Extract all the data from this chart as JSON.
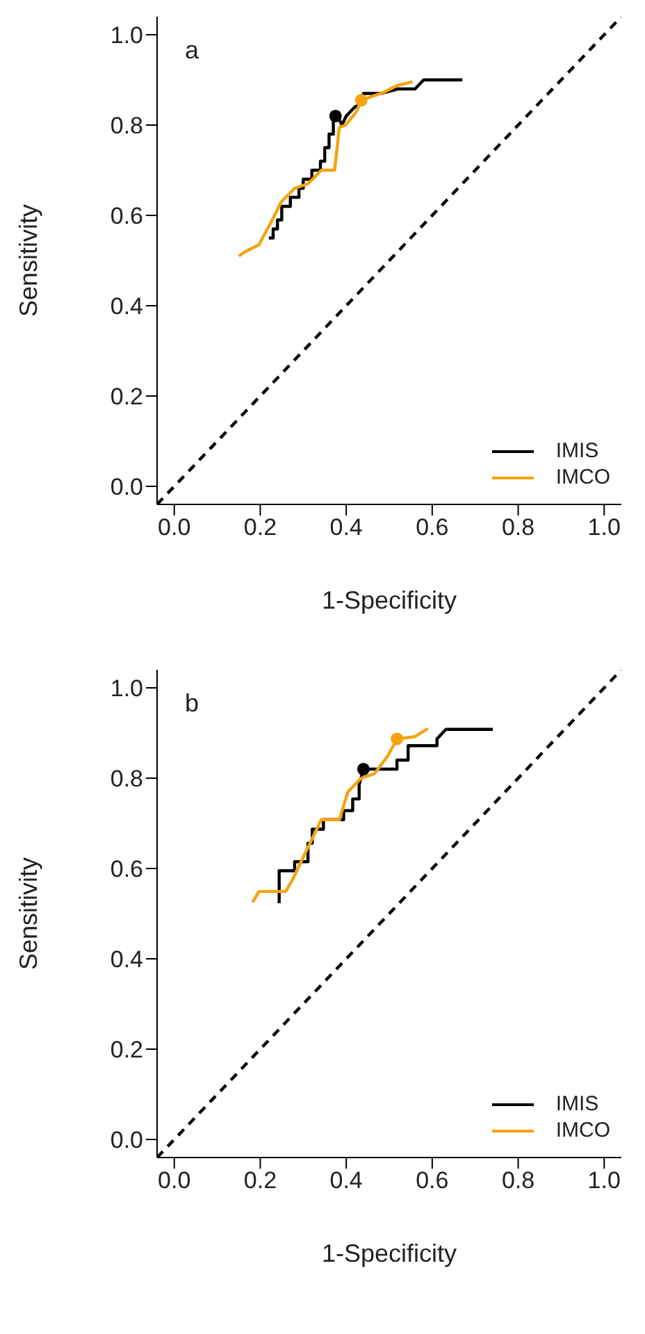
{
  "chart_data": [
    {
      "type": "line",
      "annotations": [
        "a"
      ],
      "xlabel": "1-Specificity",
      "ylabel": "Sensitivity",
      "xlim": [
        -0.04,
        1.04
      ],
      "ylim": [
        -0.04,
        1.04
      ],
      "xticks": [
        {
          "value": 0,
          "label": "0.0"
        },
        {
          "value": 0.2,
          "label": "0.2"
        },
        {
          "value": 0.4,
          "label": "0.4"
        },
        {
          "value": 0.6,
          "label": "0.6"
        },
        {
          "value": 0.8,
          "label": "0.8"
        },
        {
          "value": 1,
          "label": "1.0"
        }
      ],
      "yticks": [
        {
          "value": 0,
          "label": "0.0"
        },
        {
          "value": 0.2,
          "label": "0.2"
        },
        {
          "value": 0.4,
          "label": "0.4"
        },
        {
          "value": 0.6,
          "label": "0.6"
        },
        {
          "value": 0.8,
          "label": "0.8"
        },
        {
          "value": 1,
          "label": "1.0"
        }
      ],
      "grid": false,
      "legend": "bottom right",
      "series": [
        {
          "type": "line",
          "color": "#000000",
          "line_style": "dashed",
          "x": [
            -0.04,
            1.04
          ],
          "values": [
            -0.04,
            1.04
          ]
        },
        {
          "name": "IMIS",
          "color": "#000000",
          "x": [
            0.22,
            0.23,
            0.23,
            0.24,
            0.24,
            0.25,
            0.25,
            0.27,
            0.27,
            0.29,
            0.29,
            0.3,
            0.3,
            0.32,
            0.32,
            0.34,
            0.34,
            0.35,
            0.35,
            0.36,
            0.36,
            0.37,
            0.37,
            0.38,
            0.39,
            0.4,
            0.42,
            0.44,
            0.44,
            0.48,
            0.52,
            0.56,
            0.58,
            0.67
          ],
          "values": [
            0.55,
            0.55,
            0.57,
            0.57,
            0.59,
            0.59,
            0.62,
            0.62,
            0.64,
            0.64,
            0.66,
            0.66,
            0.68,
            0.68,
            0.7,
            0.7,
            0.72,
            0.72,
            0.75,
            0.75,
            0.78,
            0.78,
            0.82,
            0.82,
            0.8,
            0.82,
            0.84,
            0.85,
            0.87,
            0.87,
            0.88,
            0.88,
            0.9,
            0.9
          ]
        },
        {
          "name": "IMCO",
          "color": "#f5a30f",
          "x": [
            0.15,
            0.166,
            0.197,
            0.228,
            0.249,
            0.28,
            0.311,
            0.342,
            0.373,
            0.384,
            0.399,
            0.424,
            0.435,
            0.486,
            0.517,
            0.554
          ],
          "values": [
            0.51,
            0.52,
            0.535,
            0.59,
            0.63,
            0.66,
            0.67,
            0.7,
            0.7,
            0.795,
            0.8,
            0.83,
            0.855,
            0.872,
            0.887,
            0.896
          ]
        },
        {
          "type": "scatter",
          "marker": "circle",
          "color": "#000000",
          "x": [
            0.375
          ],
          "values": [
            0.82
          ]
        },
        {
          "type": "scatter",
          "marker": "circle",
          "color": "#f5a30f",
          "x": [
            0.435
          ],
          "values": [
            0.855
          ]
        }
      ]
    },
    {
      "type": "line",
      "annotations": [
        "b"
      ],
      "xlabel": "1-Specificity",
      "ylabel": "Sensitivity",
      "xlim": [
        -0.04,
        1.04
      ],
      "ylim": [
        -0.04,
        1.04
      ],
      "xticks": [
        {
          "value": 0,
          "label": "0.0"
        },
        {
          "value": 0.2,
          "label": "0.2"
        },
        {
          "value": 0.4,
          "label": "0.4"
        },
        {
          "value": 0.6,
          "label": "0.6"
        },
        {
          "value": 0.8,
          "label": "0.8"
        },
        {
          "value": 1,
          "label": "1.0"
        }
      ],
      "yticks": [
        {
          "value": 0,
          "label": "0.0"
        },
        {
          "value": 0.2,
          "label": "0.2"
        },
        {
          "value": 0.4,
          "label": "0.4"
        },
        {
          "value": 0.6,
          "label": "0.6"
        },
        {
          "value": 0.8,
          "label": "0.8"
        },
        {
          "value": 1,
          "label": "1.0"
        }
      ],
      "grid": false,
      "legend": "bottom right",
      "series": [
        {
          "type": "line",
          "color": "#000000",
          "line_style": "dashed",
          "x": [
            -0.04,
            1.04
          ],
          "values": [
            -0.04,
            1.04
          ]
        },
        {
          "name": "IMIS",
          "color": "#000000",
          "x": [
            0.244,
            0.244,
            0.265,
            0.28,
            0.28,
            0.311,
            0.311,
            0.321,
            0.321,
            0.347,
            0.347,
            0.394,
            0.394,
            0.415,
            0.415,
            0.43,
            0.43,
            0.44,
            0.487,
            0.487,
            0.518,
            0.518,
            0.544,
            0.544,
            0.611,
            0.611,
            0.632,
            0.741
          ],
          "values": [
            0.523,
            0.595,
            0.595,
            0.595,
            0.615,
            0.615,
            0.656,
            0.656,
            0.687,
            0.687,
            0.708,
            0.708,
            0.728,
            0.728,
            0.754,
            0.754,
            0.785,
            0.82,
            0.82,
            0.82,
            0.82,
            0.84,
            0.84,
            0.872,
            0.872,
            0.887,
            0.908,
            0.908
          ]
        },
        {
          "name": "IMCO",
          "color": "#f5a30f",
          "x": [
            0.182,
            0.197,
            0.259,
            0.275,
            0.306,
            0.342,
            0.384,
            0.404,
            0.435,
            0.466,
            0.497,
            0.518,
            0.56,
            0.59
          ],
          "values": [
            0.525,
            0.549,
            0.549,
            0.575,
            0.637,
            0.708,
            0.708,
            0.77,
            0.8,
            0.81,
            0.85,
            0.887,
            0.892,
            0.91
          ]
        },
        {
          "type": "scatter",
          "marker": "circle",
          "color": "#000000",
          "x": [
            0.44
          ],
          "values": [
            0.82
          ]
        },
        {
          "type": "scatter",
          "marker": "circle",
          "color": "#f5a30f",
          "x": [
            0.518
          ],
          "values": [
            0.887
          ]
        }
      ]
    }
  ]
}
